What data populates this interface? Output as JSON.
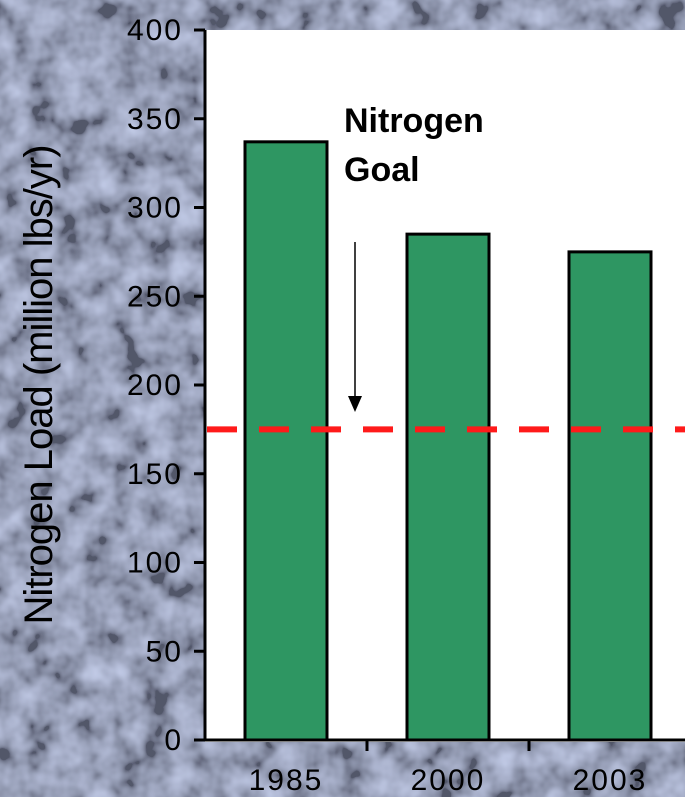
{
  "colors": {
    "bar": "#2e9662",
    "bar_outline": "#000000",
    "goal_line": "#ff1a1a",
    "background": "#b8c3ea"
  },
  "chart_data": {
    "type": "bar",
    "categories": [
      "1985",
      "2000",
      "2003"
    ],
    "values": [
      337,
      285,
      275
    ],
    "title": "",
    "xlabel": "",
    "ylabel": "Nitrogen Load (million lbs/yr)",
    "ylim": [
      0,
      400
    ],
    "yticks": [
      0,
      50,
      100,
      150,
      200,
      250,
      300,
      350,
      400
    ],
    "grid": false,
    "goal": {
      "value": 175,
      "label_line1": "Nitrogen",
      "label_line2": "Goal"
    }
  }
}
